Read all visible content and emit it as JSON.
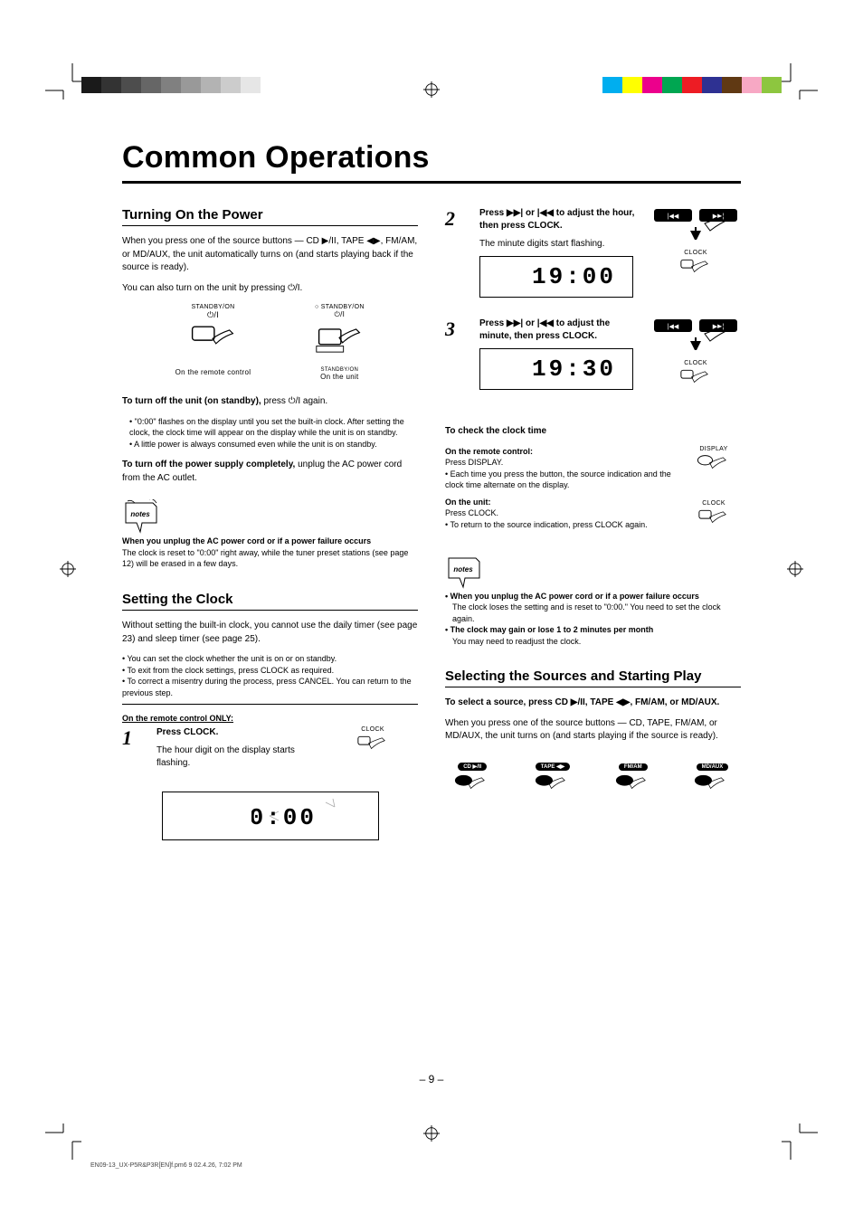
{
  "colors": {
    "left_bar": [
      "#1a1a1a",
      "#333333",
      "#4d4d4d",
      "#666666",
      "#808080",
      "#999999",
      "#b3b3b3",
      "#cccccc",
      "#e6e6e6"
    ],
    "right_bar": [
      "#00aeef",
      "#ffff00",
      "#ec008c",
      "#00a651",
      "#ed1c24",
      "#2e3192",
      "#603913",
      "#f7a8c4",
      "#8dc63f"
    ]
  },
  "title": "Common Operations",
  "left_col": {
    "h_power": "Turning On the Power",
    "p1_a": "When you press one of the source buttons — CD ",
    "p1_b": ", TAPE ",
    "p1_c": ", FM/AM, or MD/AUX, the unit automatically turns on (and starts playing back if the source is ready).",
    "p2": "You can also turn on the unit by pressing ⏻/I.",
    "btn_remote_label": "STANDBY/ON",
    "btn_unit_label_top": "STANDBY/ON",
    "btn_unit_label_bot": "STANDBY/ON",
    "caption_remote": "On the remote control",
    "caption_unit": "On the unit",
    "p3_a": "To turn off the unit (on standby),",
    "p3_b": " press ⏻/I again.",
    "indent1": "• \"0:00\" flashes on the display until you set the built-in clock. After setting the clock, the clock time will appear on the display while the unit is on standby.",
    "indent2": "• A little power is always consumed even while the unit is on standby.",
    "p4_a": "To turn off the power supply completely,",
    "p4_b": " unplug the AC power cord from the AC outlet.",
    "note1_title": "When you unplug the AC power cord or if a power failure occurs",
    "note1_body": "The clock is reset to \"0:00\" right away, while the tuner preset stations (see page 12) will be erased in a few days.",
    "h_clock": "Setting the Clock",
    "p5": "Without setting the built-in clock, you cannot use the daily timer (see page 23) and sleep timer (see page 25).",
    "p6": "• You can set the clock whether the unit is on or on standby.",
    "p7": "• To exit from the clock settings, press CLOCK as required.",
    "p8": "• To correct a misentry during the process, press CANCEL. You can return to the previous step.",
    "remote_only": "On the remote control ONLY:",
    "step1_num": "1",
    "step1_text": "Press CLOCK.",
    "step1_sub": "The hour digit on the display starts flashing.",
    "display1": "0:00",
    "clock_label": "CLOCK"
  },
  "right_col": {
    "step2_num": "2",
    "step2_a": "Press ",
    "step2_b": " or ",
    "step2_c": " to adjust the hour, then press CLOCK.",
    "step2_sub": "The minute digits start flashing.",
    "display2": "19:00",
    "step3_num": "3",
    "step3_a": "Press ",
    "step3_b": " or ",
    "step3_c": " to adjust the minute, then press CLOCK.",
    "display3": "19:30",
    "h_check": "To check the clock time",
    "check_remote": "On the remote control:",
    "check_remote_body_a": "Press DISPLAY.",
    "check_remote_body_b": "• Each time you press the button, the source indication and the clock time alternate on the display.",
    "check_unit": "On the unit:",
    "check_unit_body_a": "Press CLOCK.",
    "check_unit_body_b": "• To return to the source indication, press CLOCK again.",
    "display_label": "DISPLAY",
    "clock_label": "CLOCK",
    "note2_title": "• When you unplug the AC power cord or if a power failure occurs",
    "note2_body": "The clock loses the setting and is reset to \"0:00.\" You need to set the clock again.",
    "note2_title2": "• The clock may gain or lose 1 to 2 minutes per month",
    "note2_body2": "You may need to readjust the clock.",
    "h_sources": "Selecting the Sources and Starting Play",
    "src_p1_a": "To select a source, press CD ",
    "src_p1_b": ", TAPE ",
    "src_p1_c": ", FM/AM, or MD/AUX.",
    "src_p2": "When you press one of the source buttons — CD, TAPE, FM/AM, or MD/AUX, the unit turns on (and starts playing if the source is ready).",
    "btn_cd": "CD ▶/II",
    "btn_tape": "TAPE ◀▶",
    "btn_fm": "FM/AM",
    "btn_md": "MD/AUX"
  },
  "page_number": "– 9 –",
  "footer_small": "EN09-13_UX-P5R&P3R[EN]f.pm6                   9                                                   02.4.26, 7:02 PM"
}
